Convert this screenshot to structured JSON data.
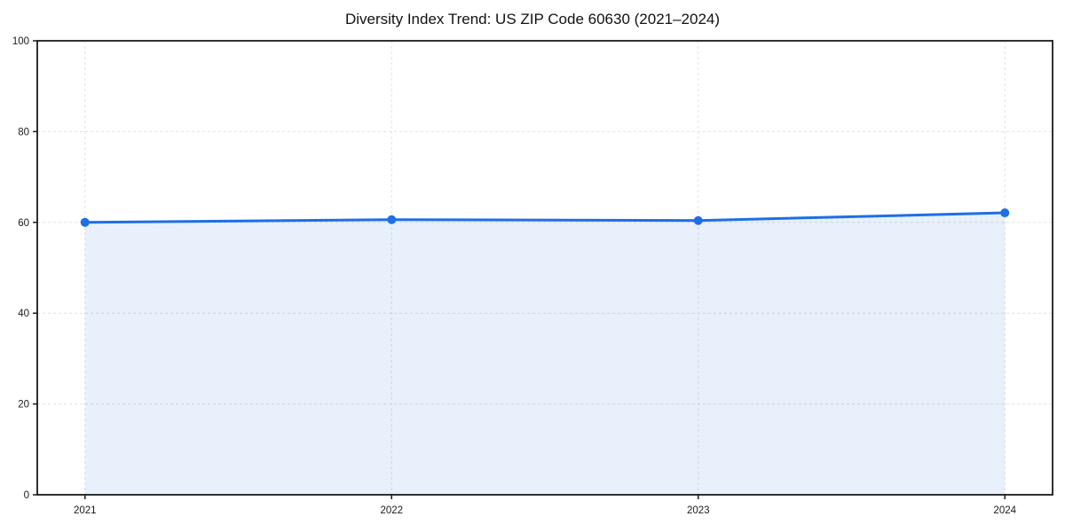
{
  "chart_data": {
    "type": "line",
    "title": "Diversity Index Trend: US ZIP Code 60630 (2021–2024)",
    "categories": [
      "2021",
      "2022",
      "2023",
      "2024"
    ],
    "series": [
      {
        "name": "Diversity Index",
        "values": [
          60.0,
          60.6,
          60.4,
          62.1
        ]
      }
    ],
    "xlabel": "",
    "ylabel": "",
    "ylim": [
      0,
      100
    ],
    "yticks": [
      0,
      20,
      40,
      60,
      80,
      100
    ],
    "grid": "dashed-both-axes",
    "legend": "none",
    "area_fill": true,
    "marker": "circle",
    "colors": {
      "line": "#1e6ee6",
      "marker": "#1e6ee6",
      "fill": "rgba(30,110,230,0.10)",
      "grid": "#e0e0e0",
      "frame": "#1a1a1a",
      "text": "#1a1a1a",
      "background": "#ffffff"
    }
  }
}
